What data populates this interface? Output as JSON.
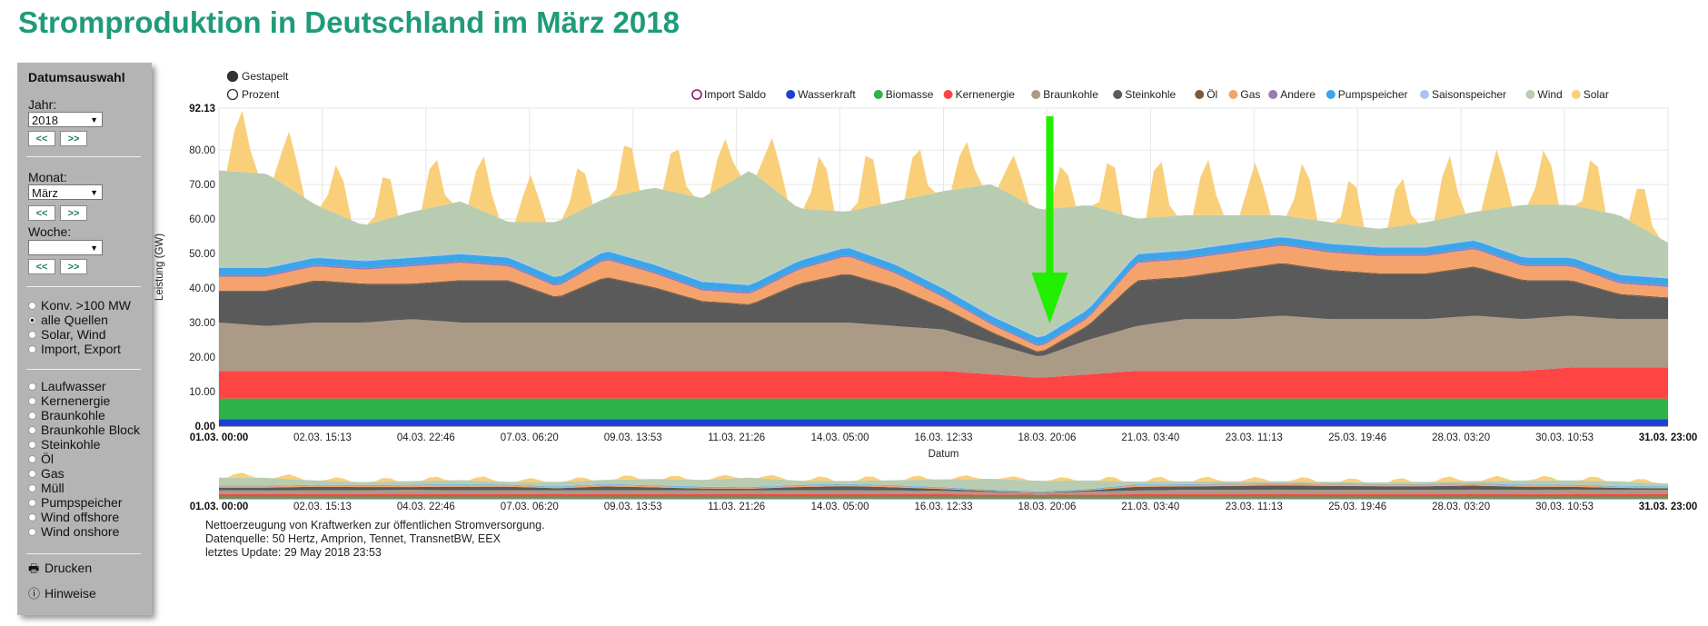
{
  "title": "Stromproduktion in Deutschland im März 2018",
  "sidebar": {
    "heading": "Datumsauswahl",
    "year_label": "Jahr:",
    "year_value": "2018",
    "month_label": "Monat:",
    "month_value": "März",
    "week_label": "Woche:",
    "week_value": "",
    "prev_label": "<<",
    "next_label": ">>",
    "group1": [
      {
        "label": "Konv. >100 MW",
        "selected": false
      },
      {
        "label": "alle Quellen",
        "selected": true
      },
      {
        "label": "Solar, Wind",
        "selected": false
      },
      {
        "label": "Import, Export",
        "selected": false
      }
    ],
    "group2": [
      {
        "label": "Laufwasser"
      },
      {
        "label": "Kernenergie"
      },
      {
        "label": "Braunkohle"
      },
      {
        "label": "Braunkohle Block"
      },
      {
        "label": "Steinkohle"
      },
      {
        "label": "Öl"
      },
      {
        "label": "Gas"
      },
      {
        "label": "Müll"
      },
      {
        "label": "Pumpspeicher"
      },
      {
        "label": "Wind offshore"
      },
      {
        "label": "Wind onshore"
      }
    ],
    "print_label": "Drucken",
    "info_label": "Hinweise"
  },
  "mode_toggle": [
    {
      "label": "Gestapelt",
      "selected": true
    },
    {
      "label": "Prozent",
      "selected": false
    }
  ],
  "footer": {
    "line1": "Nettoerzeugung von Kraftwerken zur öffentlichen Stromversorgung.",
    "line2": "Datenquelle: 50 Hertz, Amprion, Tennet, TransnetBW, EEX",
    "line3": "letztes Update: 29 May 2018 23:53"
  },
  "chart_data": {
    "type": "area",
    "stacked": true,
    "xlabel": "Datum",
    "ylabel": "Leistung (GW)",
    "ylim": [
      0,
      92.13
    ],
    "yticks": [
      "0.00",
      "10.00",
      "20.00",
      "30.00",
      "40.00",
      "50.00",
      "60.00",
      "70.00",
      "80.00",
      "92.13"
    ],
    "xticks": [
      "01.03. 00:00",
      "02.03. 15:13",
      "04.03. 22:46",
      "07.03. 06:20",
      "09.03. 13:53",
      "11.03. 21:26",
      "14.03. 05:00",
      "16.03. 12:33",
      "18.03. 20:06",
      "21.03. 03:40",
      "23.03. 11:13",
      "25.03. 19:46",
      "28.03. 03:20",
      "30.03. 10:53",
      "31.03. 23:00"
    ],
    "xticks_bold": [
      0,
      14
    ],
    "x_days": [
      1,
      2,
      3,
      4,
      5,
      6,
      7,
      8,
      9,
      10,
      11,
      12,
      13,
      14,
      15,
      16,
      17,
      18,
      19,
      20,
      21,
      22,
      23,
      24,
      25,
      26,
      27,
      28,
      29,
      30,
      31
    ],
    "legend_placement": "top",
    "annotation": {
      "type": "arrow",
      "color": "#22ee00",
      "direction": "down",
      "at_day": 18.2
    },
    "series": [
      {
        "name": "Import Saldo",
        "color": "#8b1a6b",
        "values": []
      },
      {
        "name": "Wasserkraft",
        "color": "#1e3ed8",
        "values": [
          2,
          2,
          2,
          2,
          2,
          2,
          2,
          2,
          2,
          2,
          2,
          2,
          2,
          2,
          2,
          2,
          2,
          2,
          2,
          2,
          2,
          2,
          2,
          2,
          2,
          2,
          2,
          2,
          2,
          2,
          2
        ]
      },
      {
        "name": "Biomasse",
        "color": "#2db34a",
        "values": [
          6,
          6,
          6,
          6,
          6,
          6,
          6,
          6,
          6,
          6,
          6,
          6,
          6,
          6,
          6,
          6,
          6,
          6,
          6,
          6,
          6,
          6,
          6,
          6,
          6,
          6,
          6,
          6,
          6,
          6,
          6
        ]
      },
      {
        "name": "Kernenergie",
        "color": "#ff4444",
        "values": [
          8,
          8,
          8,
          8,
          8,
          8,
          8,
          8,
          8,
          8,
          8,
          8,
          8,
          8,
          8,
          8,
          7,
          6,
          7,
          8,
          8,
          8,
          8,
          8,
          8,
          8,
          8,
          8,
          9,
          9,
          9
        ]
      },
      {
        "name": "Braunkohle",
        "color": "#ab9a86",
        "values": [
          14,
          13,
          14,
          14,
          15,
          14,
          14,
          14,
          14,
          14,
          14,
          14,
          14,
          14,
          13,
          12,
          9,
          6,
          10,
          13,
          15,
          15,
          16,
          15,
          15,
          15,
          16,
          15,
          15,
          14,
          14
        ]
      },
      {
        "name": "Steinkohle",
        "color": "#5a5a5a",
        "values": [
          9,
          10,
          12,
          11,
          10,
          12,
          12,
          7,
          13,
          10,
          6,
          5,
          11,
          14,
          11,
          6,
          3,
          1,
          4,
          13,
          12,
          14,
          15,
          14,
          13,
          13,
          14,
          11,
          10,
          7,
          6
        ]
      },
      {
        "name": "Öl",
        "color": "#7a5a3a",
        "values": [
          0.3,
          0.3,
          0.3,
          0.3,
          0.3,
          0.3,
          0.3,
          0.3,
          0.3,
          0.3,
          0.3,
          0.3,
          0.3,
          0.3,
          0.3,
          0.3,
          0.3,
          0.3,
          0.3,
          0.3,
          0.3,
          0.3,
          0.3,
          0.3,
          0.3,
          0.3,
          0.3,
          0.3,
          0.3,
          0.3,
          0.3
        ]
      },
      {
        "name": "Gas",
        "color": "#f5a36c",
        "values": [
          4,
          4,
          4,
          4,
          5,
          5,
          4,
          3,
          5,
          4,
          3,
          3,
          4,
          5,
          4,
          3,
          2,
          1.5,
          2,
          5,
          5,
          5,
          5,
          5,
          5,
          5,
          5,
          4,
          4,
          3,
          3
        ]
      },
      {
        "name": "Andere",
        "color": "#9a7ab8",
        "values": [
          0.5,
          0.5,
          0.5,
          0.5,
          0.5,
          0.5,
          0.5,
          0.5,
          0.5,
          0.5,
          0.5,
          0.5,
          0.5,
          0.5,
          0.5,
          0.5,
          0.5,
          0.5,
          0.5,
          0.5,
          0.5,
          0.5,
          0.5,
          0.5,
          0.5,
          0.5,
          0.5,
          0.5,
          0.5,
          0.5,
          0.5
        ]
      },
      {
        "name": "Pumpspeicher",
        "color": "#3aa6e8",
        "values": [
          2,
          2,
          2,
          2,
          2,
          2,
          2,
          2,
          2,
          2,
          2,
          2,
          2,
          2,
          2,
          2,
          2,
          2,
          2,
          2,
          2,
          2,
          2,
          2,
          2,
          2,
          2,
          2,
          2,
          2,
          2
        ]
      },
      {
        "name": "Saisonspeicher",
        "color": "#a9c4ef",
        "values": [
          0.3,
          0.3,
          0.3,
          0.3,
          0.3,
          0.3,
          0.3,
          0.3,
          0.3,
          0.3,
          0.3,
          0.3,
          0.3,
          0.3,
          0.3,
          0.3,
          0.3,
          0.3,
          0.3,
          0.3,
          0.3,
          0.3,
          0.3,
          0.3,
          0.3,
          0.3,
          0.3,
          0.3,
          0.3,
          0.3,
          0.3
        ]
      },
      {
        "name": "Wind",
        "color": "#b8ccb2",
        "values": [
          28,
          27,
          15,
          10,
          13,
          15,
          10,
          16,
          15,
          22,
          24,
          33,
          15,
          10,
          18,
          28,
          38,
          37,
          30,
          10,
          10,
          8,
          6,
          6,
          5,
          7,
          8,
          15,
          15,
          17,
          10
        ]
      },
      {
        "name": "Solar",
        "color": "#f9cf7a",
        "values": [
          10,
          10,
          8,
          8,
          7,
          9,
          9,
          6,
          9,
          8,
          7,
          8,
          8,
          10,
          8,
          8,
          7,
          6,
          8,
          9,
          10,
          8,
          9,
          9,
          6,
          10,
          10,
          9,
          9,
          8,
          6
        ]
      }
    ]
  }
}
